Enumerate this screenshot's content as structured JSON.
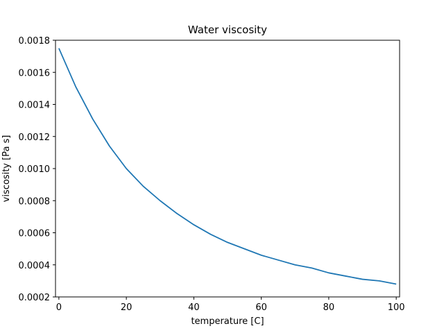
{
  "chart_data": {
    "type": "line",
    "title": "Water viscosity",
    "xlabel": "temperature [C]",
    "ylabel": "viscosity [Pa s]",
    "xlim": [
      -1,
      101
    ],
    "ylim": [
      0.0002,
      0.0018
    ],
    "xticks": [
      0,
      20,
      40,
      60,
      80,
      100
    ],
    "yticks": [
      0.0002,
      0.0004,
      0.0006,
      0.0008,
      0.001,
      0.0012,
      0.0014,
      0.0016,
      0.0018
    ],
    "ytick_labels": [
      "0.0002",
      "0.0004",
      "0.0006",
      "0.0008",
      "0.0010",
      "0.0012",
      "0.0014",
      "0.0016",
      "0.0018"
    ],
    "xtick_labels": [
      "0",
      "20",
      "40",
      "60",
      "80",
      "100"
    ],
    "grid": false,
    "legend": "none",
    "line_color": "#1f77b4",
    "series": [
      {
        "x": [
          0,
          5,
          10,
          15,
          20,
          25,
          30,
          35,
          40,
          45,
          50,
          55,
          60,
          65,
          70,
          75,
          80,
          85,
          90,
          95,
          100
        ],
        "y": [
          0.00175,
          0.00151,
          0.00131,
          0.00114,
          0.001,
          0.00089,
          0.0008,
          0.00072,
          0.00065,
          0.00059,
          0.00054,
          0.0005,
          0.00046,
          0.00043,
          0.0004,
          0.00038,
          0.00035,
          0.00033,
          0.00031,
          0.0003,
          0.00028
        ]
      }
    ]
  }
}
